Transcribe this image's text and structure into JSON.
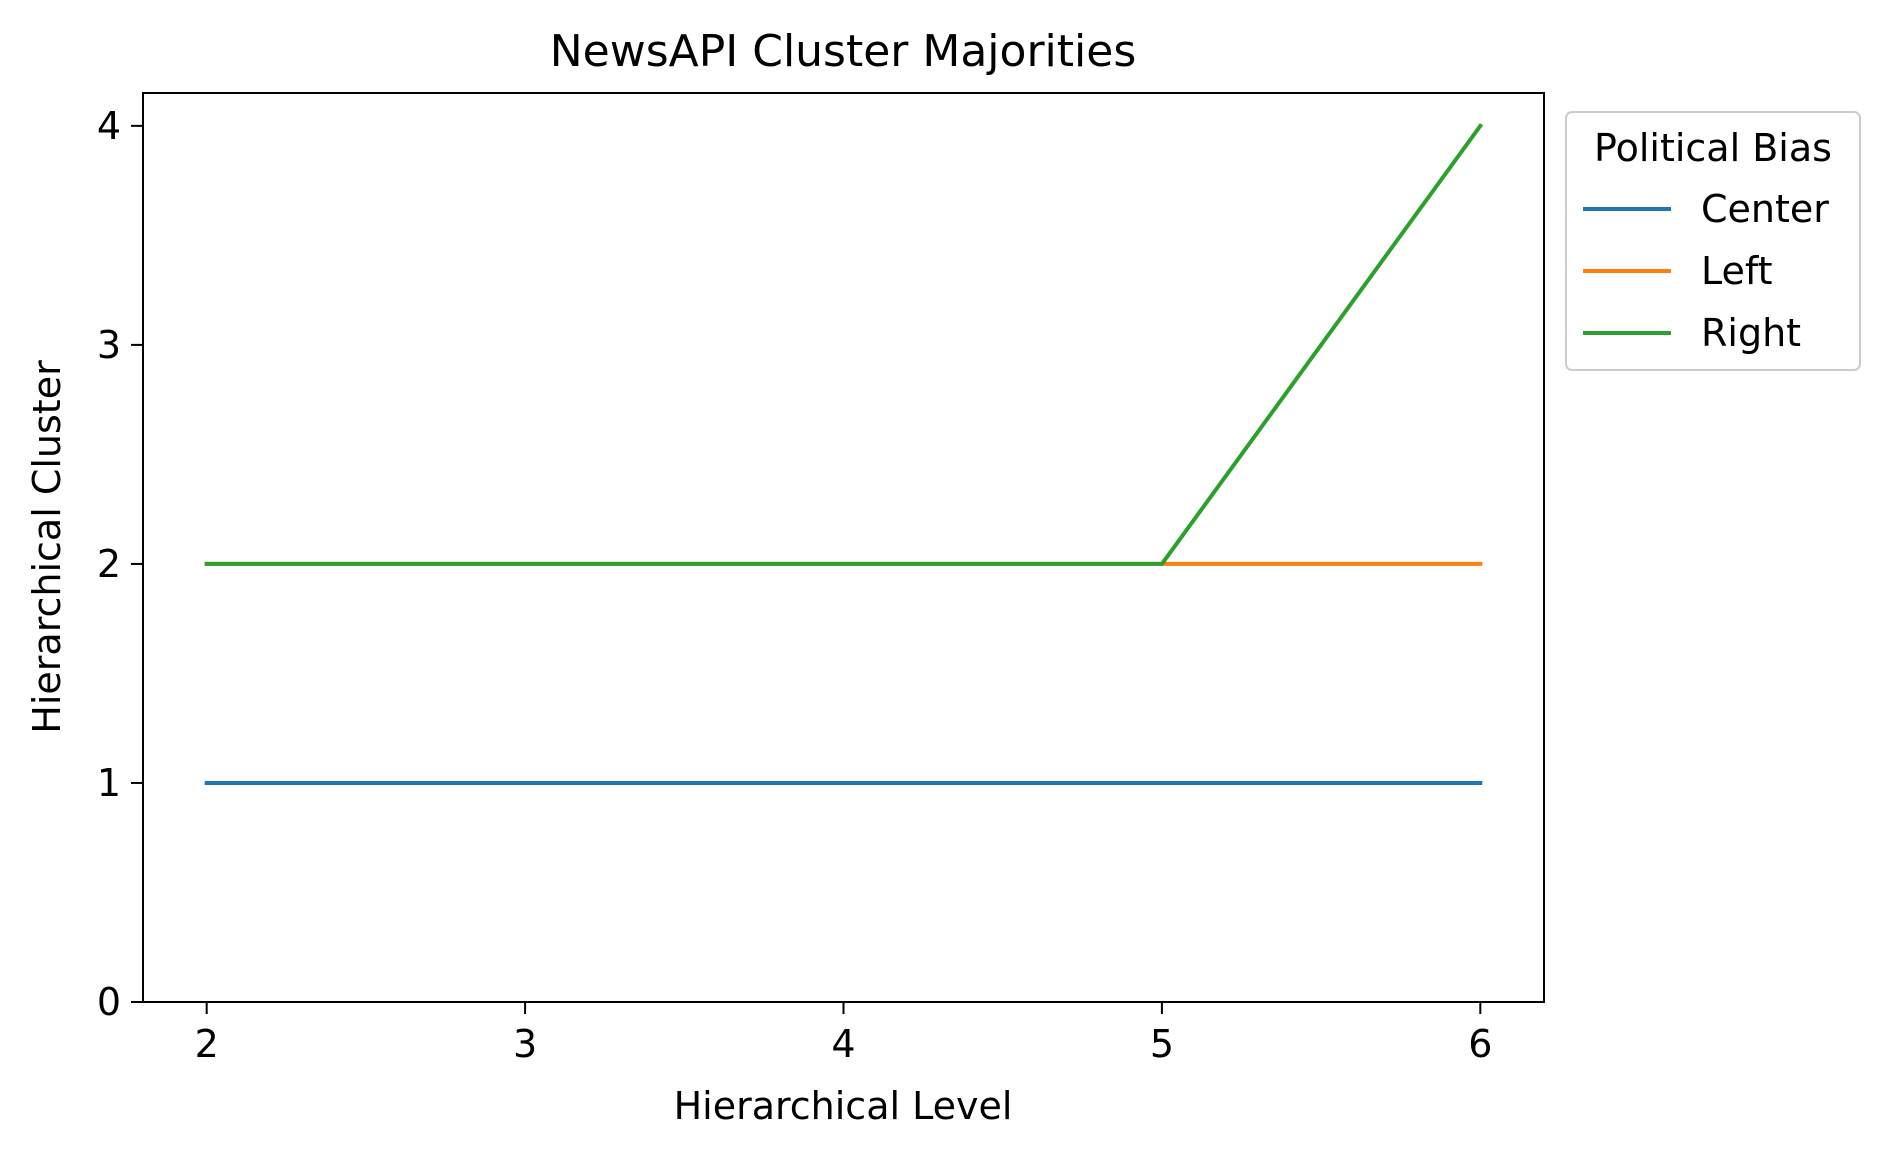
{
  "chart_data": {
    "type": "line",
    "title": "NewsAPI Cluster Majorities",
    "xlabel": "Hierarchical Level",
    "ylabel": "Hierarchical Cluster",
    "x": [
      2,
      3,
      4,
      5,
      6
    ],
    "xlim": [
      1.8,
      6.2
    ],
    "ylim": [
      0,
      4.15
    ],
    "xticks": [
      "2",
      "3",
      "4",
      "5",
      "6"
    ],
    "yticks": [
      "0",
      "1",
      "2",
      "3",
      "4"
    ],
    "grid": false,
    "legend": {
      "title": "Political Bias",
      "placement": "outside-top-right"
    },
    "series": [
      {
        "name": "Center",
        "color": "#1f77b4",
        "values": [
          1,
          1,
          1,
          1,
          1
        ]
      },
      {
        "name": "Left",
        "color": "#ff7f0e",
        "values": [
          2,
          2,
          2,
          2,
          2
        ]
      },
      {
        "name": "Right",
        "color": "#2ca02c",
        "values": [
          2,
          2,
          2,
          2,
          4
        ]
      }
    ]
  }
}
